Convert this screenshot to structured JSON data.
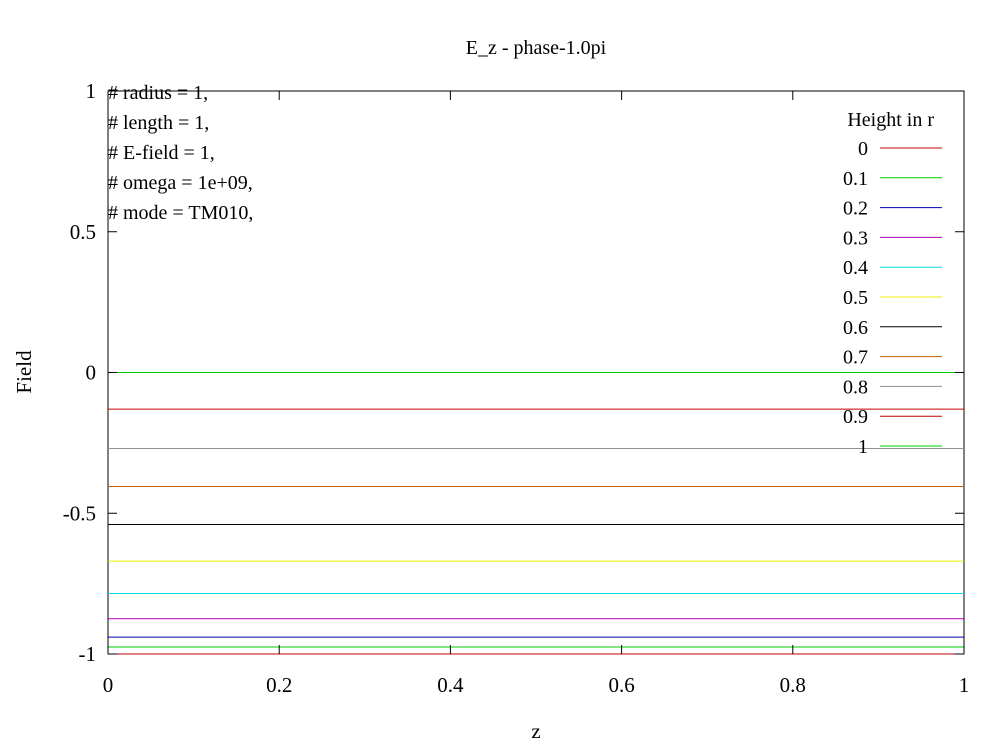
{
  "chart_data": {
    "type": "line",
    "title": "E_z - phase-1.0pi",
    "xlabel": "z",
    "ylabel": "Field",
    "xlim": [
      0,
      1
    ],
    "ylim": [
      -1,
      1
    ],
    "xticks": [
      "0",
      "0.2",
      "0.4",
      "0.6",
      "0.8",
      "1"
    ],
    "yticks": [
      "1",
      "0.5",
      "0",
      "-0.5",
      "-1"
    ],
    "grid": false,
    "legend_title": "Height in r",
    "legend_position": "top-right",
    "annotations": [
      "# radius = 1,",
      "# length = 1,",
      "# E-field = 1,",
      "# omega = 1e+09,",
      "# mode = TM010,"
    ],
    "x": [
      0,
      1
    ],
    "series": [
      {
        "name": "0",
        "color": "#c00000",
        "values": [
          -1.0,
          -1.0
        ]
      },
      {
        "name": "0.1",
        "color": "#00cc00",
        "values": [
          -0.975,
          -0.975
        ]
      },
      {
        "name": "0.2",
        "color": "#0000b0",
        "values": [
          -0.94,
          -0.94
        ]
      },
      {
        "name": "0.3",
        "color": "#b000b0",
        "values": [
          -0.875,
          -0.875
        ]
      },
      {
        "name": "0.4",
        "color": "#00dddd",
        "values": [
          -0.785,
          -0.785
        ]
      },
      {
        "name": "0.5",
        "color": "#eeee00",
        "values": [
          -0.67,
          -0.67
        ]
      },
      {
        "name": "0.6",
        "color": "#000000",
        "values": [
          -0.54,
          -0.54
        ]
      },
      {
        "name": "0.7",
        "color": "#c06000",
        "values": [
          -0.405,
          -0.405
        ]
      },
      {
        "name": "0.8",
        "color": "#909090",
        "values": [
          -0.27,
          -0.27
        ]
      },
      {
        "name": "0.9",
        "color": "#c00000",
        "values": [
          -0.13,
          -0.13
        ]
      },
      {
        "name": "1",
        "color": "#00cc00",
        "values": [
          0.0,
          0.0
        ]
      }
    ]
  }
}
